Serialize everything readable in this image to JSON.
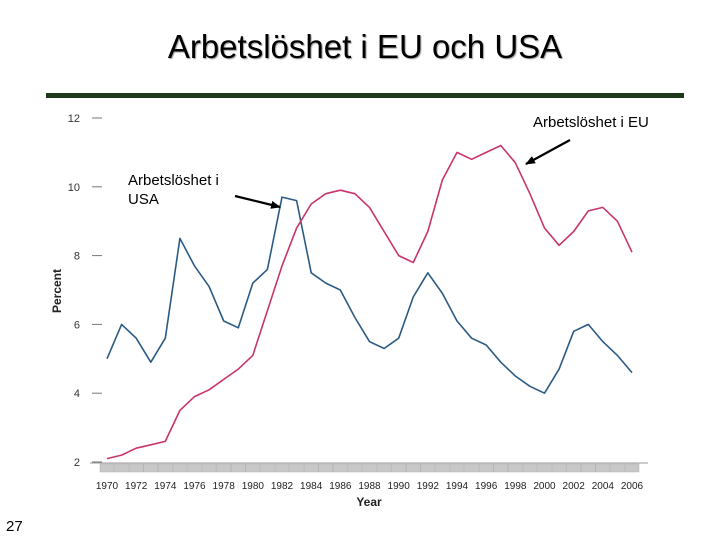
{
  "slide": {
    "title": "Arbetslöshet i EU och USA",
    "page_number": "27"
  },
  "chart_data": {
    "type": "line",
    "title": "",
    "xlabel": "Year",
    "ylabel": "Percent",
    "xlim": [
      1969,
      2006
    ],
    "ylim": [
      2,
      12
    ],
    "yticks": [
      2,
      4,
      6,
      8,
      10,
      12
    ],
    "xticks": [
      1970,
      1972,
      1974,
      1976,
      1978,
      1980,
      1982,
      1984,
      1986,
      1988,
      1990,
      1992,
      1994,
      1996,
      1998,
      2000,
      2002,
      2004,
      2006
    ],
    "x": [
      1970,
      1971,
      1972,
      1973,
      1974,
      1975,
      1976,
      1977,
      1978,
      1979,
      1980,
      1981,
      1982,
      1983,
      1984,
      1985,
      1986,
      1987,
      1988,
      1989,
      1990,
      1991,
      1992,
      1993,
      1994,
      1995,
      1996,
      1997,
      1998,
      1999,
      2000,
      2001,
      2002,
      2003,
      2004,
      2005,
      2006
    ],
    "series": [
      {
        "key": "usa",
        "color": "#2b5b84",
        "values": [
          5.0,
          6.0,
          5.6,
          4.9,
          5.6,
          8.5,
          7.7,
          7.1,
          6.1,
          5.9,
          7.2,
          7.6,
          9.7,
          9.6,
          7.5,
          7.2,
          7.0,
          6.2,
          5.5,
          5.3,
          5.6,
          6.8,
          7.5,
          6.9,
          6.1,
          5.6,
          5.4,
          4.9,
          4.5,
          4.2,
          4.0,
          4.7,
          5.8,
          6.0,
          5.5,
          5.1,
          4.6
        ]
      },
      {
        "key": "eu",
        "color": "#c8346e",
        "values": [
          2.1,
          2.2,
          2.4,
          2.5,
          2.6,
          3.5,
          3.9,
          4.1,
          4.4,
          4.7,
          5.1,
          6.4,
          7.7,
          8.8,
          9.5,
          9.8,
          9.9,
          9.8,
          9.4,
          8.7,
          8.0,
          7.8,
          8.7,
          10.2,
          11.0,
          10.8,
          11.0,
          11.2,
          10.7,
          9.8,
          8.8,
          8.3,
          8.7,
          9.3,
          9.4,
          9.0,
          8.1
        ]
      }
    ],
    "annotations": [
      {
        "key": "eu",
        "text": "Arbetslöshet i EU"
      },
      {
        "key": "usa",
        "text": "Arbetslöshet i USA",
        "lines": [
          "Arbetslöshet i",
          "USA"
        ]
      }
    ]
  }
}
